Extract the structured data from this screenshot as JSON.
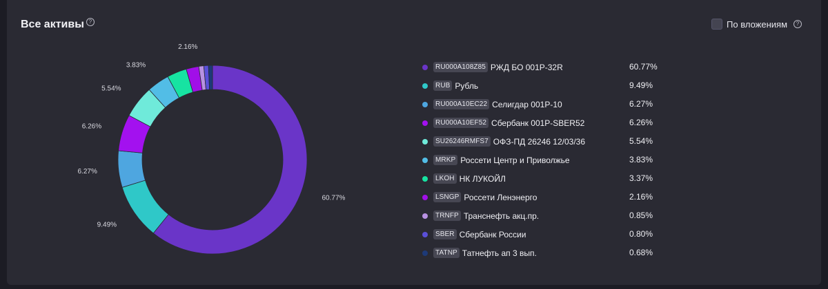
{
  "header": {
    "title": "Все активы",
    "toggle_label": "По вложениям",
    "help_glyph": "?"
  },
  "chart_data": {
    "type": "pie",
    "style": "donut",
    "title": "Все активы",
    "legend_position": "right",
    "slices": [
      {
        "ticker": "RU000A108Z85",
        "name": "РЖД БО 001Р-32R",
        "value": 60.77,
        "label": "60.77%",
        "color": "#6a35c8"
      },
      {
        "ticker": "RUB",
        "name": "Рубль",
        "value": 9.49,
        "label": "9.49%",
        "color": "#2fc8c8"
      },
      {
        "ticker": "RU000A10EC22",
        "name": "Селигдар 001Р-10",
        "value": 6.27,
        "label": "6.27%",
        "color": "#4ea6e0"
      },
      {
        "ticker": "RU000A10EF52",
        "name": "Сбербанк 001Р-SBER52",
        "value": 6.26,
        "label": "6.26%",
        "color": "#a311ef"
      },
      {
        "ticker": "SU26246RMFS7",
        "name": "ОФЗ-ПД 26246 12/03/36",
        "value": 5.54,
        "label": "5.54%",
        "color": "#6feada"
      },
      {
        "ticker": "MRKP",
        "name": "Россети Центр и Приволжье",
        "value": 3.83,
        "label": "3.83%",
        "color": "#52bde6"
      },
      {
        "ticker": "LKOH",
        "name": "НК ЛУКОЙЛ",
        "value": 3.37,
        "label": "3.37%",
        "color": "#17e3a2"
      },
      {
        "ticker": "LSNGP",
        "name": "Россети Ленэнерго",
        "value": 2.16,
        "label": "2.16%",
        "color": "#a10fe8"
      },
      {
        "ticker": "TRNFP",
        "name": "Транснефть акц.пр.",
        "value": 0.85,
        "label": "0.85%",
        "color": "#b891e2"
      },
      {
        "ticker": "SBER",
        "name": "Сбербанк России",
        "value": 0.8,
        "label": "0.80%",
        "color": "#5a4fd8"
      },
      {
        "ticker": "TATNP",
        "name": "Татнефть ап 3 вып.",
        "value": 0.68,
        "label": "0.68%",
        "color": "#1d3a78"
      }
    ],
    "visible_slice_labels": [
      "60.77%",
      "9.49%",
      "6.27%",
      "6.26%",
      "5.54%",
      "3.83%",
      "2.16%"
    ]
  }
}
